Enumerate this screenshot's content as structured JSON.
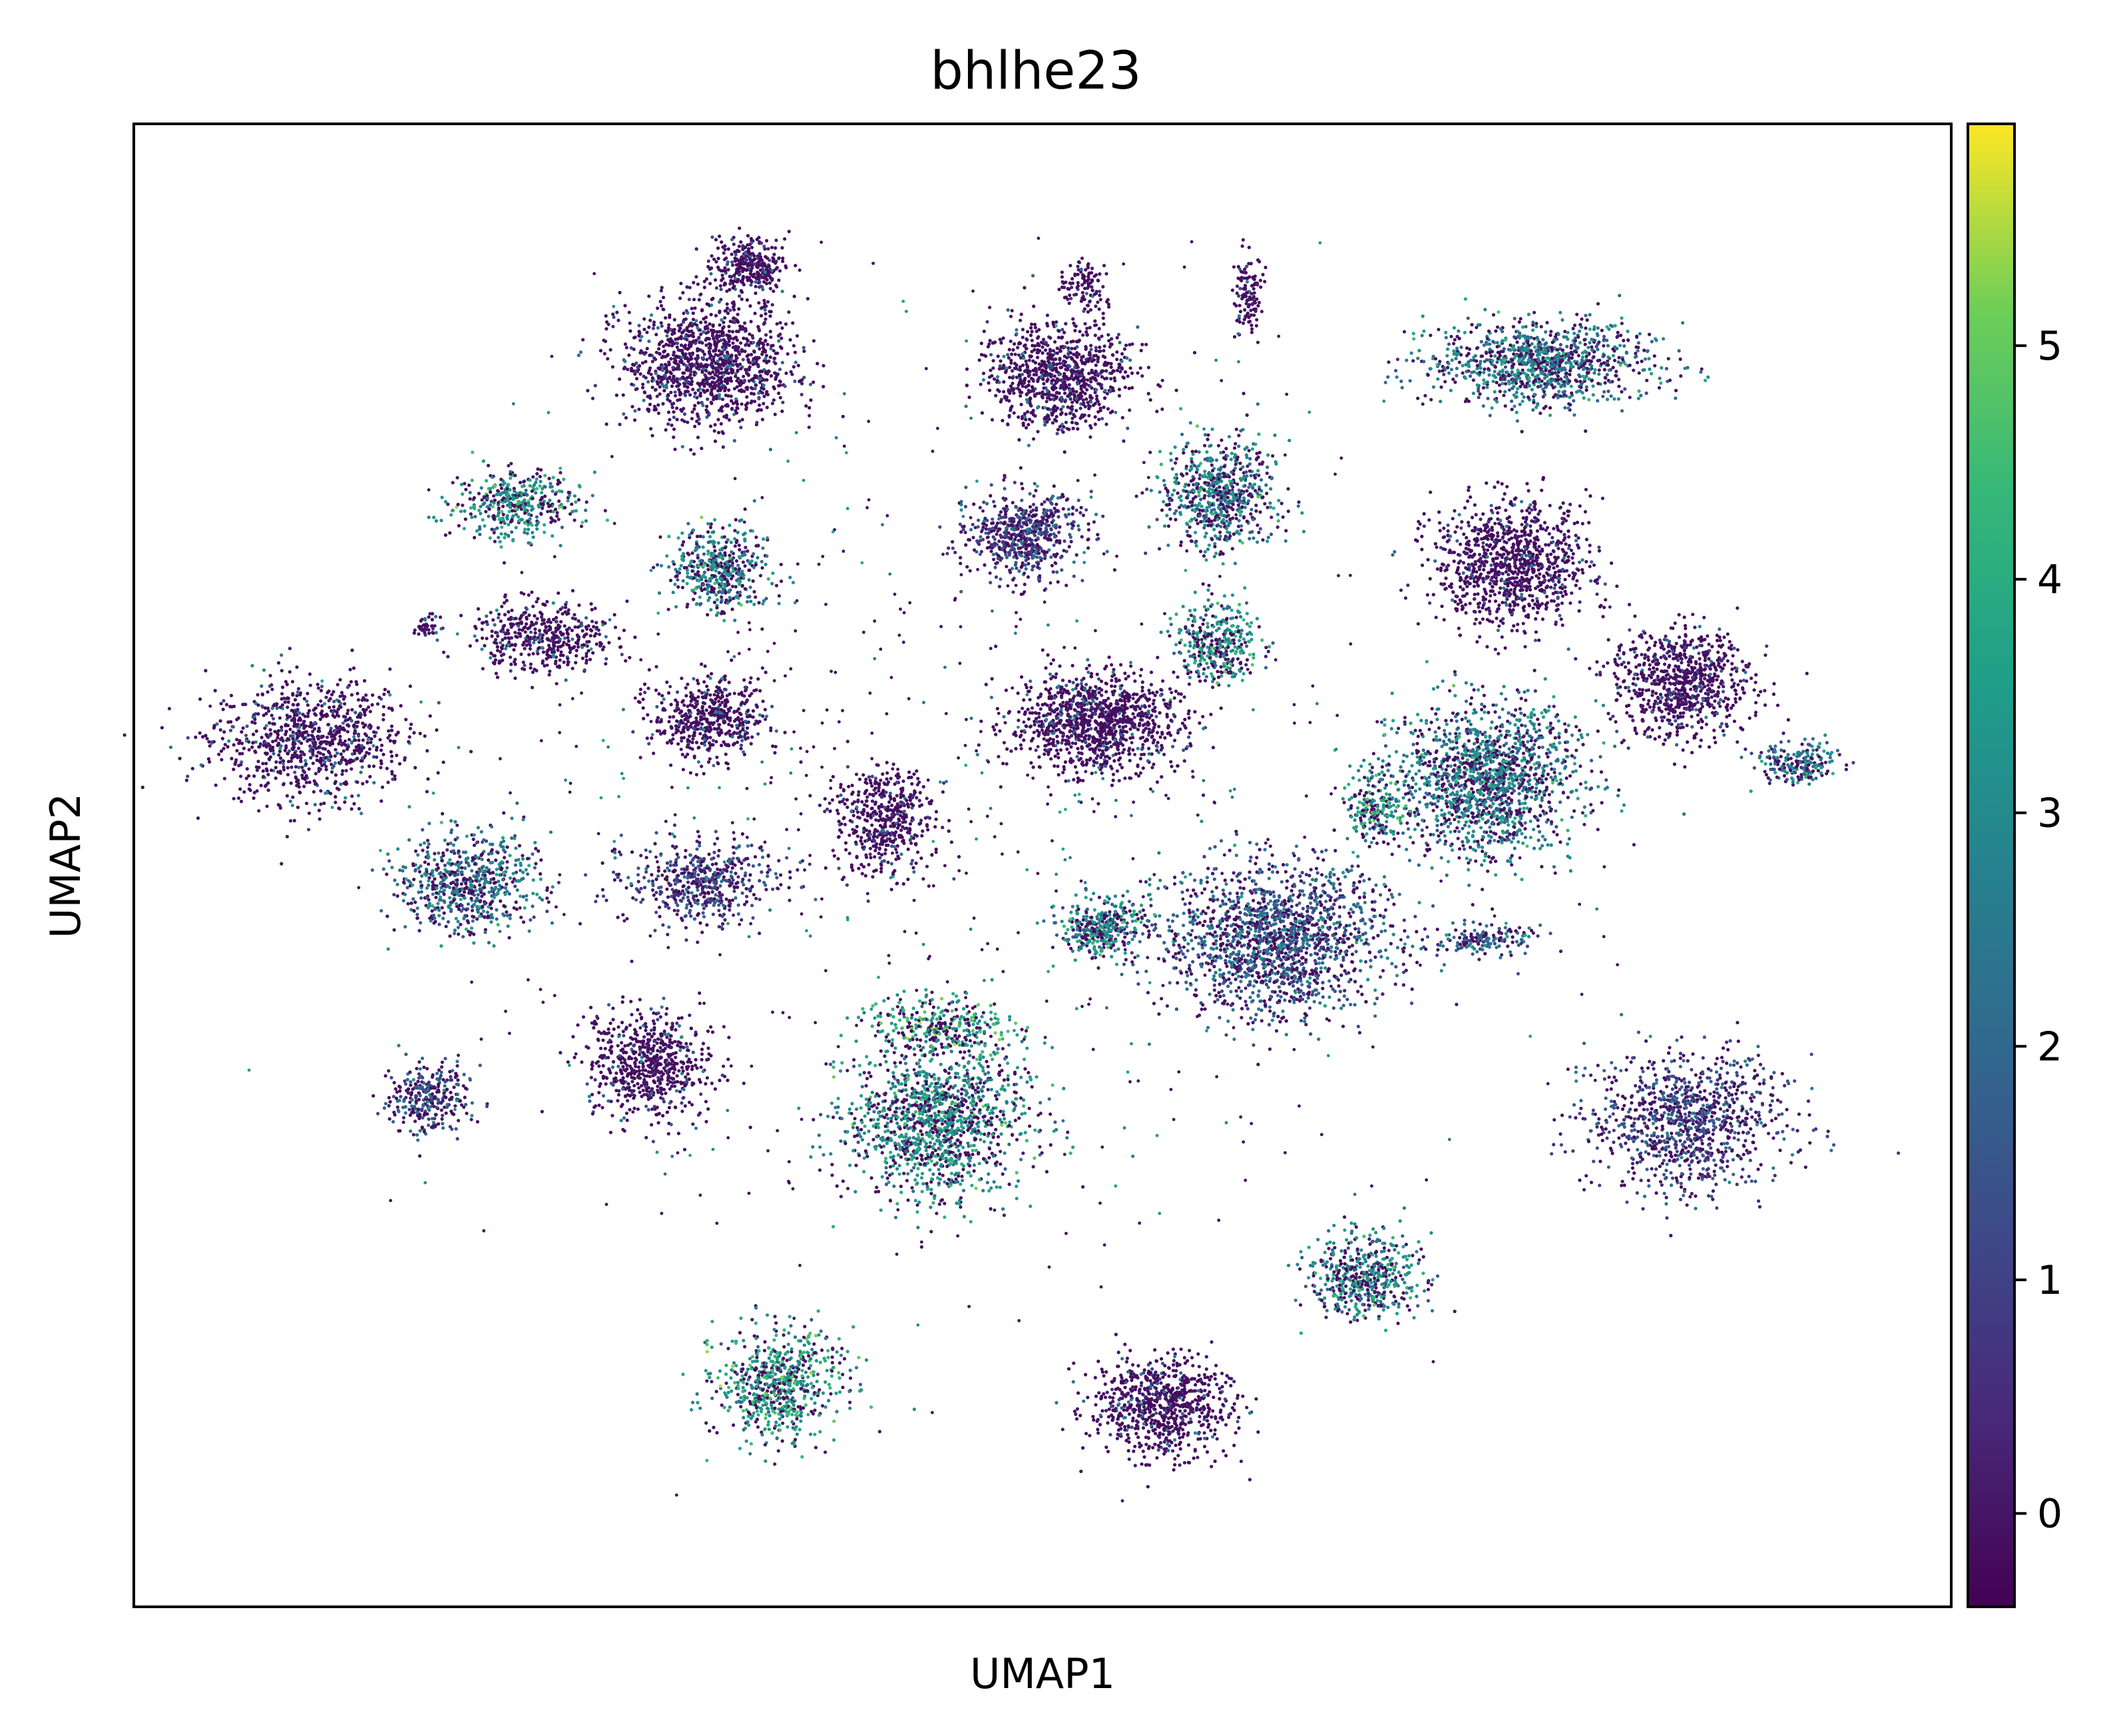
{
  "chart_data": {
    "type": "scatter",
    "title": "bhlhe23",
    "xlabel": "UMAP1",
    "ylabel": "UMAP2",
    "xticks": [],
    "yticks": [],
    "xlim": [
      -15,
      16
    ],
    "ylim": [
      -12,
      14
    ],
    "grid": false,
    "legend": "none",
    "colorbar": {
      "placement": "right",
      "colormap": "viridis",
      "range": [
        -0.4,
        5.95
      ],
      "ticks": [
        0,
        1,
        2,
        3,
        4,
        5
      ],
      "tick_labels": [
        "0",
        "1",
        "2",
        "3",
        "4",
        "5"
      ]
    },
    "clusters": [
      {
        "cx": -12.0,
        "cy": 3.2,
        "sx": 1.4,
        "sy": 0.9,
        "n": 900,
        "expression": 0.9
      },
      {
        "cx": -4.5,
        "cy": 11.5,
        "sx": 0.5,
        "sy": 0.4,
        "n": 300,
        "expression": 0.3
      },
      {
        "cx": -5.2,
        "cy": 9.8,
        "sx": 1.2,
        "sy": 0.9,
        "n": 1200,
        "expression": 0.4
      },
      {
        "cx": -8.5,
        "cy": 7.3,
        "sx": 0.9,
        "sy": 0.5,
        "n": 400,
        "expression": 3.3
      },
      {
        "cx": -5.0,
        "cy": 6.2,
        "sx": 0.7,
        "sy": 0.6,
        "n": 450,
        "expression": 3.0
      },
      {
        "cx": -8.0,
        "cy": 5.0,
        "sx": 1.0,
        "sy": 0.5,
        "n": 450,
        "expression": 0.8
      },
      {
        "cx": -10.0,
        "cy": 5.2,
        "sx": 0.2,
        "sy": 0.15,
        "n": 40,
        "expression": 0.3
      },
      {
        "cx": -5.2,
        "cy": 3.6,
        "sx": 0.8,
        "sy": 0.6,
        "n": 500,
        "expression": 0.6
      },
      {
        "cx": -2.2,
        "cy": 1.8,
        "sx": 0.7,
        "sy": 0.8,
        "n": 500,
        "expression": 0.2
      },
      {
        "cx": -9.3,
        "cy": 0.7,
        "sx": 1.0,
        "sy": 0.7,
        "n": 650,
        "expression": 2.4
      },
      {
        "cx": -5.3,
        "cy": 0.7,
        "sx": 1.1,
        "sy": 0.6,
        "n": 500,
        "expression": 1.0
      },
      {
        "cx": -10.0,
        "cy": -3.1,
        "sx": 0.6,
        "sy": 0.5,
        "n": 300,
        "expression": 1.5
      },
      {
        "cx": -6.2,
        "cy": -2.5,
        "sx": 0.9,
        "sy": 0.8,
        "n": 650,
        "expression": 0.4
      },
      {
        "cx": -1.3,
        "cy": -3.5,
        "sx": 1.3,
        "sy": 1.1,
        "n": 1300,
        "expression": 3.2
      },
      {
        "cx": -1.2,
        "cy": -1.8,
        "sx": 1.0,
        "sy": 0.4,
        "n": 300,
        "expression": 3.8
      },
      {
        "cx": -4.0,
        "cy": -8.1,
        "sx": 0.9,
        "sy": 0.8,
        "n": 650,
        "expression": 3.5
      },
      {
        "cx": 1.2,
        "cy": 11.2,
        "sx": 0.3,
        "sy": 0.3,
        "n": 100,
        "expression": 0.3
      },
      {
        "cx": 0.8,
        "cy": 9.6,
        "sx": 1.0,
        "sy": 0.8,
        "n": 900,
        "expression": 0.5
      },
      {
        "cx": 0.2,
        "cy": 6.8,
        "sx": 0.8,
        "sy": 0.6,
        "n": 600,
        "expression": 1.0
      },
      {
        "cx": 4.0,
        "cy": 11.0,
        "sx": 0.2,
        "sy": 0.6,
        "n": 120,
        "expression": 0.3
      },
      {
        "cx": 3.5,
        "cy": 7.5,
        "sx": 0.8,
        "sy": 0.8,
        "n": 650,
        "expression": 2.8
      },
      {
        "cx": 3.5,
        "cy": 4.9,
        "sx": 0.6,
        "sy": 0.6,
        "n": 350,
        "expression": 3.3
      },
      {
        "cx": 1.4,
        "cy": 3.5,
        "sx": 1.2,
        "sy": 0.7,
        "n": 1100,
        "expression": 0.4
      },
      {
        "cx": 4.5,
        "cy": -0.3,
        "sx": 1.6,
        "sy": 1.1,
        "n": 2000,
        "expression": 1.8
      },
      {
        "cx": 1.5,
        "cy": -0.1,
        "sx": 0.6,
        "sy": 0.4,
        "n": 350,
        "expression": 3.0
      },
      {
        "cx": 9.0,
        "cy": 9.8,
        "sx": 1.6,
        "sy": 0.6,
        "n": 1000,
        "expression": 2.6
      },
      {
        "cx": 8.5,
        "cy": 6.3,
        "sx": 1.1,
        "sy": 0.9,
        "n": 1000,
        "expression": 0.2
      },
      {
        "cx": 11.4,
        "cy": 4.2,
        "sx": 1.0,
        "sy": 0.8,
        "n": 800,
        "expression": 0.3
      },
      {
        "cx": 8.1,
        "cy": 2.5,
        "sx": 1.3,
        "sy": 1.1,
        "n": 1500,
        "expression": 2.7
      },
      {
        "cx": 6.2,
        "cy": 2.0,
        "sx": 0.4,
        "sy": 0.5,
        "n": 200,
        "expression": 3.5
      },
      {
        "cx": 13.4,
        "cy": 2.8,
        "sx": 0.6,
        "sy": 0.3,
        "n": 200,
        "expression": 2.6
      },
      {
        "cx": 8.0,
        "cy": -0.3,
        "sx": 0.7,
        "sy": 0.2,
        "n": 150,
        "expression": 1.8
      },
      {
        "cx": 11.5,
        "cy": -3.5,
        "sx": 1.4,
        "sy": 1.0,
        "n": 1000,
        "expression": 1.2
      },
      {
        "cx": 6.0,
        "cy": -6.2,
        "sx": 0.8,
        "sy": 0.6,
        "n": 500,
        "expression": 3.0
      },
      {
        "cx": 2.5,
        "cy": -8.5,
        "sx": 1.0,
        "sy": 0.7,
        "n": 800,
        "expression": 0.5
      }
    ]
  }
}
